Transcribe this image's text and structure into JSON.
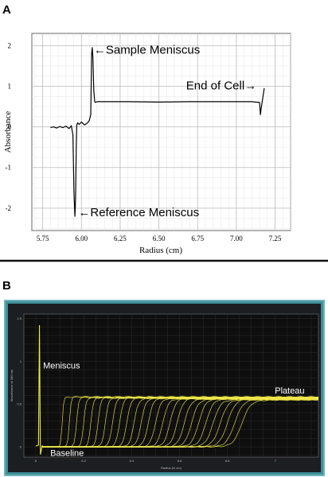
{
  "chart_data": [
    {
      "panel": "A",
      "type": "line",
      "xlabel": "Radius (cm)",
      "ylabel": "Absorbance",
      "xlim": [
        5.68,
        7.35
      ],
      "ylim": [
        -2.55,
        2.3
      ],
      "x_ticks": [
        "5.75",
        "6.00",
        "6.25",
        "6.50",
        "6.75",
        "7.00",
        "7.25"
      ],
      "x_tick_values": [
        5.75,
        6.0,
        6.25,
        6.5,
        6.75,
        7.0,
        7.25
      ],
      "y_ticks": [
        "2",
        "1",
        "0",
        "-1",
        "-2"
      ],
      "y_tick_values": [
        2,
        1,
        0,
        -1,
        -2
      ],
      "grid": true,
      "series": [
        {
          "x": [
            5.8,
            5.82,
            5.84,
            5.86,
            5.88,
            5.9,
            5.92,
            5.935,
            5.945,
            5.952,
            5.958,
            5.962,
            5.966,
            5.97,
            5.976,
            5.985,
            6.0,
            6.02,
            6.04,
            6.05,
            6.06,
            6.066,
            6.07,
            6.074,
            6.08,
            6.086,
            6.09,
            6.1,
            6.3,
            6.5,
            6.7,
            6.9,
            7.1,
            7.15,
            7.155,
            7.16,
            7.17,
            7.18
          ],
          "y": [
            -0.02,
            0.0,
            -0.03,
            0.01,
            -0.02,
            0.02,
            -0.04,
            0.03,
            -0.2,
            -1.6,
            -2.2,
            -1.8,
            -0.6,
            0.05,
            0.1,
            0.06,
            0.12,
            0.05,
            0.1,
            0.15,
            0.3,
            1.8,
            1.95,
            1.7,
            0.9,
            0.62,
            0.6,
            0.62,
            0.62,
            0.61,
            0.62,
            0.62,
            0.62,
            0.6,
            0.3,
            0.45,
            0.7,
            0.95
          ]
        }
      ],
      "annotations": [
        {
          "text": "←Sample Meniscus",
          "x": 6.08,
          "y": 1.9
        },
        {
          "text": "End of Cell→",
          "x": 7.13,
          "y": 1.02
        },
        {
          "text": "←Reference Meniscus",
          "x": 5.98,
          "y": -2.1
        }
      ]
    },
    {
      "panel": "B",
      "type": "line",
      "xlabel": "Radius (in cm)",
      "ylabel": "Absorbance at 280 nm",
      "xlim": [
        5.95,
        7.18
      ],
      "ylim": [
        -0.12,
        1.55
      ],
      "x_ticks": [
        "6",
        "6.2",
        "6.4",
        "6.6",
        "6.8",
        "7"
      ],
      "x_tick_values": [
        6.0,
        6.2,
        6.4,
        6.6,
        6.8,
        7.0
      ],
      "y_ticks": [
        "1.5",
        "1",
        "0.5",
        "0"
      ],
      "y_tick_values": [
        1.5,
        1.0,
        0.5,
        0.0
      ],
      "grid": true,
      "meniscus_x": 6.015,
      "baseline_y": 0.0,
      "plateau_y": 0.55,
      "boundary_start_x": 6.11,
      "boundary_end_x": 6.86,
      "scan_count": 26,
      "colors": {
        "trace": "#f0e84a",
        "background": "#0e0e0e",
        "frame": "#4d9fa8"
      },
      "annotations": [
        {
          "text": "Meniscus",
          "x": 6.03,
          "y": 0.95
        },
        {
          "text": "Baseline",
          "x": 6.06,
          "y": -0.07
        },
        {
          "text": "Plateau",
          "x": 7.06,
          "y": 0.66
        }
      ]
    }
  ]
}
